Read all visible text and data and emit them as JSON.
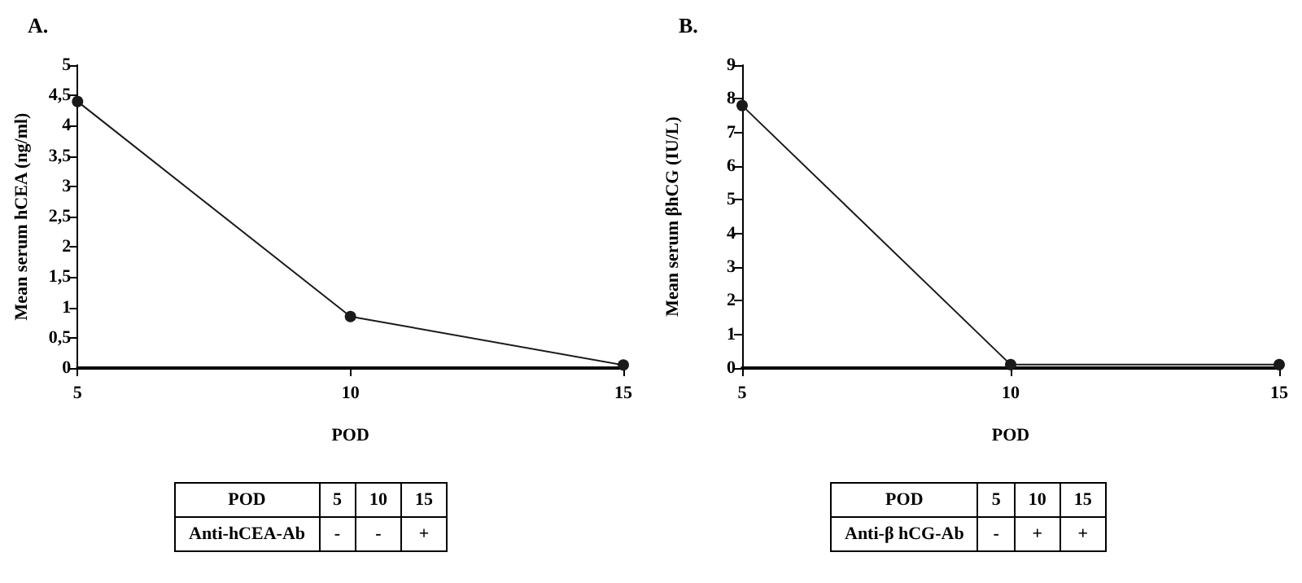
{
  "chart_data": [
    {
      "type": "line",
      "title": "A.",
      "xlabel": "POD",
      "ylabel": "Mean serum hCEA (ng/ml)",
      "x": [
        5,
        10,
        15
      ],
      "series": [
        {
          "color": "#1a1a1a",
          "values": [
            4.4,
            0.85,
            0.05
          ]
        }
      ],
      "xlim": [
        5,
        15
      ],
      "xticks": [
        5,
        10,
        15
      ],
      "ylim": [
        0,
        5
      ],
      "yticks": [
        0,
        {
          "value": 0.5,
          "label": "0,5"
        },
        1,
        {
          "value": 1.5,
          "label": "1,5"
        },
        2,
        {
          "value": 2.5,
          "label": "2,5"
        },
        3,
        {
          "value": 3.5,
          "label": "3,5"
        },
        4,
        {
          "value": 4.5,
          "label": "4,5"
        },
        5
      ],
      "grid": false,
      "marker": "circle",
      "line_style": "solid",
      "annotations": [
        "POD",
        "5",
        "10",
        "15",
        "Anti-hCEA-Ab",
        "-",
        "-",
        "+"
      ]
    },
    {
      "type": "line",
      "title": "B.",
      "xlabel": "POD",
      "ylabel": "Mean serum βhCG (IU/L)",
      "x": [
        5,
        10,
        15
      ],
      "series": [
        {
          "color": "#1a1a1a",
          "values": [
            7.8,
            0.1,
            0.1
          ]
        }
      ],
      "xlim": [
        5,
        15
      ],
      "xticks": [
        5,
        10,
        15
      ],
      "ylim": [
        0,
        9
      ],
      "yticks": [
        0,
        1,
        2,
        3,
        4,
        5,
        6,
        7,
        8,
        9
      ],
      "grid": false,
      "marker": "circle",
      "line_style": "solid",
      "annotations": [
        "POD",
        "5",
        "10",
        "15",
        "Anti-β hCG-Ab",
        "-",
        "+",
        "+"
      ]
    }
  ]
}
